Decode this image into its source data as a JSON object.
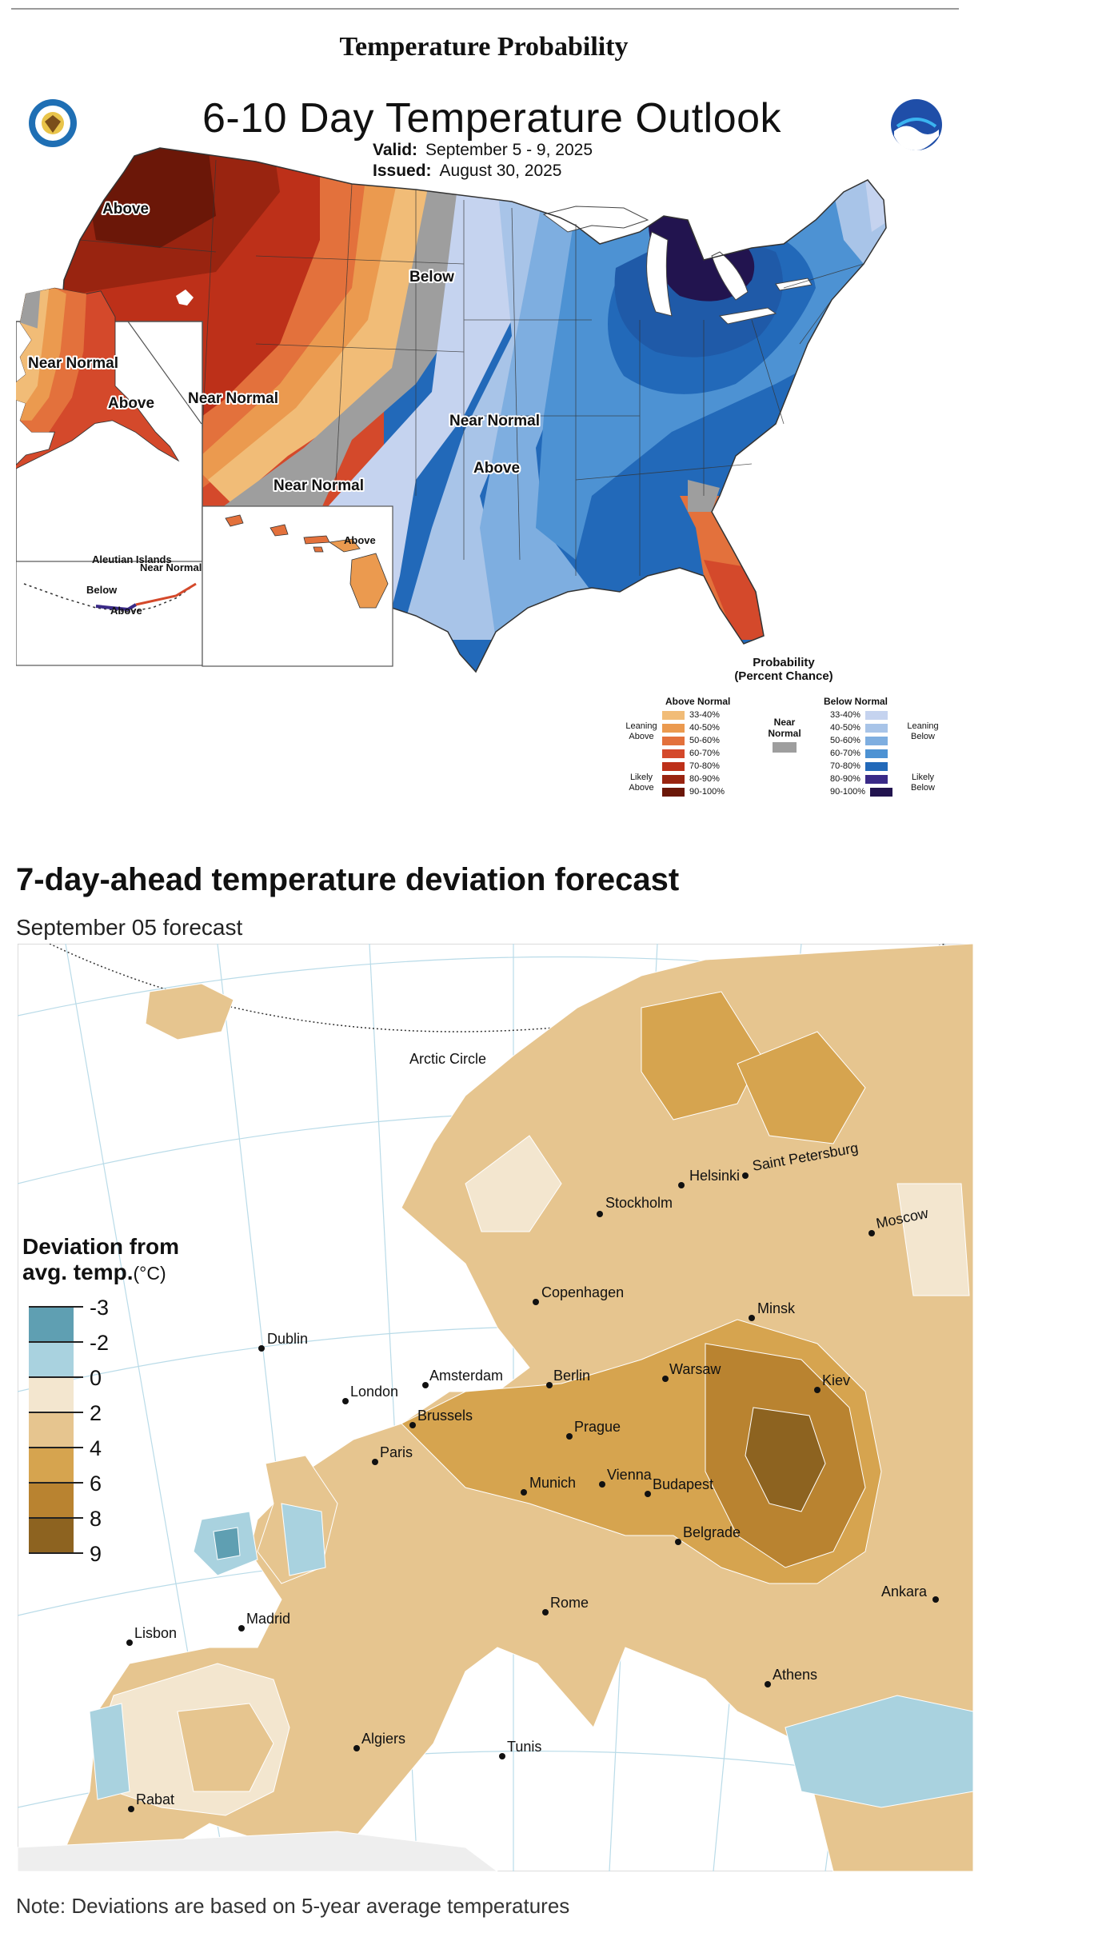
{
  "page_title": "Temperature Probability",
  "us_outlook": {
    "title": "6-10 Day Temperature Outlook",
    "valid_label": "Valid:",
    "valid_value": "September 5 - 9, 2025",
    "issued_label": "Issued:",
    "issued_value": "August 30, 2025",
    "map_labels": {
      "above_nw": "Above",
      "below_gl": "Below",
      "near_normal_sw": "Near Normal",
      "near_normal_se": "Near Normal",
      "above_fl": "Above",
      "near_normal_tx": "Near Normal",
      "ak_near_normal": "Near Normal",
      "ak_above": "Above",
      "hi_above": "Above",
      "aleutian_title": "Aleutian Islands",
      "aleutian_near_normal": "Near Normal",
      "aleutian_below": "Below",
      "aleutian_above": "Above"
    },
    "legend": {
      "title_line1": "Probability",
      "title_line2": "(Percent Chance)",
      "above_header": "Above Normal",
      "below_header": "Below Normal",
      "near_normal": "Near Normal",
      "leaning_above": "Leaning Above",
      "likely_above": "Likely Above",
      "leaning_below": "Leaning Below",
      "likely_below": "Likely Below",
      "above_bins": [
        "33-40%",
        "40-50%",
        "50-60%",
        "60-70%",
        "70-80%",
        "80-90%",
        "90-100%"
      ],
      "below_bins": [
        "33-40%",
        "40-50%",
        "50-60%",
        "60-70%",
        "70-80%",
        "80-90%",
        "90-100%"
      ],
      "above_colors": [
        "#f1bc77",
        "#eb9a4f",
        "#e3713c",
        "#d4492b",
        "#bd3019",
        "#992410",
        "#6b1708"
      ],
      "below_colors": [
        "#c5d3ef",
        "#a8c4e8",
        "#7eaee0",
        "#4d92d3",
        "#2269b9",
        "#3a2a87",
        "#22144f"
      ],
      "near_color": "#9e9e9e"
    }
  },
  "europe_forecast": {
    "heading": "7-day-ahead temperature deviation forecast",
    "subheading": "September 05 forecast",
    "arctic_circle": "Arctic Circle",
    "legend_title_line1": "Deviation from",
    "legend_title_line2": "avg. temp.",
    "legend_unit": "(°C)",
    "legend_ticks": [
      "-3",
      "-2",
      "0",
      "2",
      "4",
      "6",
      "8",
      "9"
    ],
    "legend_colors": [
      "#5f9fb2",
      "#a9d2df",
      "#f3e6cf",
      "#e6c58f",
      "#d6a44f",
      "#b98330",
      "#8d6320"
    ],
    "cities": [
      "Helsinki",
      "Saint Petersburg",
      "Stockholm",
      "Moscow",
      "Copenhagen",
      "Dublin",
      "Minsk",
      "London",
      "Amsterdam",
      "Berlin",
      "Warsaw",
      "Kiev",
      "Brussels",
      "Prague",
      "Paris",
      "Munich",
      "Vienna",
      "Budapest",
      "Belgrade",
      "Rome",
      "Madrid",
      "Lisbon",
      "Ankara",
      "Athens",
      "Algiers",
      "Tunis",
      "Rabat"
    ],
    "note": "Note: Deviations are based on 5-year average temperatures"
  }
}
